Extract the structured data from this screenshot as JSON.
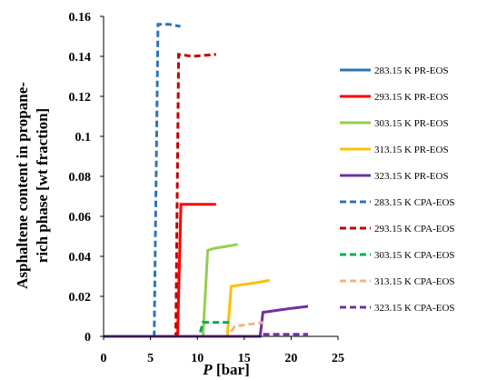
{
  "chart_data": {
    "type": "line",
    "xlabel_prefix": "P",
    "xlabel_suffix": "[bar]",
    "ylabel_lines": [
      "Asphaltene content in propane-",
      "rich phase [wt fraction]"
    ],
    "xlim": [
      0,
      25
    ],
    "ylim": [
      0,
      0.16
    ],
    "x_ticks": [
      "0",
      "5",
      "10",
      "15",
      "20",
      "25"
    ],
    "y_ticks": [
      "0",
      "0.02",
      "0.04",
      "0.06",
      "0.08",
      "0.1",
      "0.12",
      "0.14",
      "0.16"
    ],
    "grid": false,
    "legend_position": "right",
    "series": [
      {
        "name": "283.15 K PR-EOS",
        "color": "#2e74b5",
        "dash": "solid",
        "points": []
      },
      {
        "name": "293.15 K PR-EOS",
        "color": "#ff0000",
        "dash": "solid",
        "points": [
          [
            0,
            0
          ],
          [
            7.9,
            0
          ],
          [
            8.25,
            0.066
          ],
          [
            12.0,
            0.066
          ]
        ]
      },
      {
        "name": "303.15 K PR-EOS",
        "color": "#92d050",
        "dash": "solid",
        "points": [
          [
            0,
            0
          ],
          [
            10.6,
            0
          ],
          [
            11.1,
            0.043
          ],
          [
            11.8,
            0.044
          ],
          [
            13.1,
            0.045
          ],
          [
            14.3,
            0.046
          ]
        ]
      },
      {
        "name": "313.15 K PR-EOS",
        "color": "#ffc000",
        "dash": "solid",
        "points": [
          [
            0,
            0
          ],
          [
            13.2,
            0
          ],
          [
            13.6,
            0.025
          ],
          [
            15.0,
            0.026
          ],
          [
            16.5,
            0.027
          ],
          [
            17.7,
            0.028
          ]
        ]
      },
      {
        "name": "323.15 K PR-EOS",
        "color": "#7030a0",
        "dash": "solid",
        "points": [
          [
            0,
            0
          ],
          [
            16.7,
            0
          ],
          [
            17.0,
            0.012
          ],
          [
            18.5,
            0.013
          ],
          [
            20.0,
            0.014
          ],
          [
            21.8,
            0.015
          ]
        ]
      },
      {
        "name": "283.15 K CPA-EOS",
        "color": "#2e74b5",
        "dash": "dashed",
        "points": [
          [
            0,
            0
          ],
          [
            5.4,
            0
          ],
          [
            5.8,
            0.156
          ],
          [
            7.0,
            0.156
          ],
          [
            8.2,
            0.155
          ]
        ]
      },
      {
        "name": "293.15 K CPA-EOS",
        "color": "#c00000",
        "dash": "dashed",
        "points": [
          [
            0,
            0
          ],
          [
            7.7,
            0
          ],
          [
            8.0,
            0.141
          ],
          [
            9.5,
            0.14
          ],
          [
            12.0,
            0.141
          ]
        ]
      },
      {
        "name": "303.15 K CPA-EOS",
        "color": "#00b050",
        "dash": "dashed",
        "points": [
          [
            0,
            0
          ],
          [
            10.2,
            0
          ],
          [
            10.6,
            0.007
          ],
          [
            11.5,
            0.007
          ],
          [
            13.6,
            0.007
          ]
        ]
      },
      {
        "name": "313.15 K CPA-EOS",
        "color": "#f4b183",
        "dash": "dashed",
        "points": [
          [
            0,
            0
          ],
          [
            13.2,
            0
          ],
          [
            14.0,
            0.005
          ],
          [
            15.5,
            0.006
          ],
          [
            17.0,
            0.007
          ]
        ]
      },
      {
        "name": "323.15 K CPA-EOS",
        "color": "#7030a0",
        "dash": "dashed",
        "points": [
          [
            0,
            0
          ],
          [
            16.5,
            0
          ],
          [
            17.0,
            0.001
          ],
          [
            19.5,
            0.001
          ],
          [
            21.8,
            0.001
          ]
        ]
      }
    ]
  }
}
